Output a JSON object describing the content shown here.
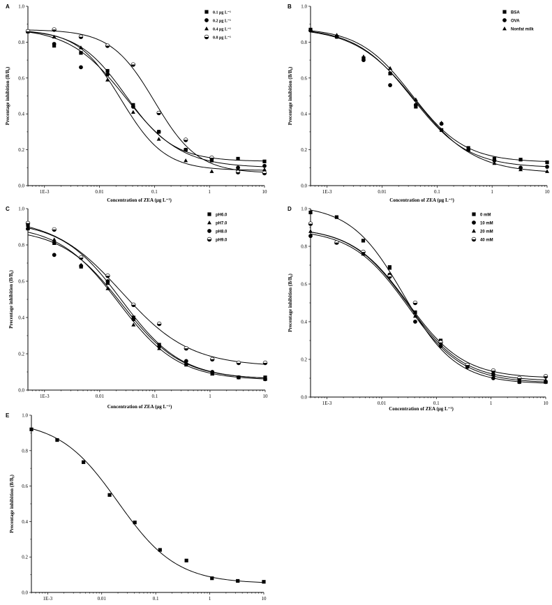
{
  "chart_data": [
    {
      "panel": "A",
      "type": "scatter",
      "xscale": "log",
      "xlim": [
        0.0005,
        10
      ],
      "ylim": [
        0.0,
        1.0
      ],
      "xticks": [
        "1E-3",
        "0.01",
        "0.1",
        "1",
        "10"
      ],
      "yticks": [
        "0.0",
        "0.2",
        "0.4",
        "0.6",
        "0.8",
        "1.0"
      ],
      "xlabel": "Concentration of ZEA (μg L⁻¹)",
      "ylabel": "Precentage inhibition (B/B₀)",
      "legend_position": "top-right",
      "x": [
        0.0005,
        0.0015,
        0.0046,
        0.014,
        0.041,
        0.12,
        0.37,
        1.1,
        3.3,
        10
      ],
      "series": [
        {
          "name": "0.1 μg L⁻¹",
          "marker": "square",
          "values": [
            0.86,
            0.78,
            0.74,
            0.64,
            0.45,
            0.3,
            0.2,
            0.14,
            0.15,
            0.135
          ],
          "fit": {
            "top": 0.87,
            "bottom": 0.135,
            "ic50": 0.03,
            "hill": 1.0
          }
        },
        {
          "name": "0.2 μg L⁻¹",
          "marker": "circle",
          "values": [
            0.86,
            0.79,
            0.66,
            0.62,
            0.44,
            0.3,
            0.2,
            0.15,
            0.1,
            0.11
          ],
          "fit": {
            "top": 0.88,
            "bottom": 0.1,
            "ic50": 0.03,
            "hill": 0.85
          }
        },
        {
          "name": "0.4 μg L⁻¹",
          "marker": "triangle",
          "values": [
            0.86,
            0.83,
            0.77,
            0.59,
            0.41,
            0.26,
            0.14,
            0.08,
            0.09,
            0.09
          ],
          "fit": {
            "top": 0.87,
            "bottom": 0.085,
            "ic50": 0.025,
            "hill": 1.1
          }
        },
        {
          "name": "0.8 μg L⁻¹",
          "marker": "half",
          "values": [
            0.86,
            0.87,
            0.83,
            0.78,
            0.675,
            0.405,
            0.255,
            0.155,
            0.075,
            0.07
          ],
          "fit": {
            "top": 0.87,
            "bottom": 0.07,
            "ic50": 0.1,
            "hill": 1.1
          }
        }
      ]
    },
    {
      "panel": "B",
      "type": "scatter",
      "xscale": "log",
      "xlim": [
        0.0005,
        10
      ],
      "ylim": [
        0.0,
        1.0
      ],
      "xticks": [
        "1E-3",
        "0.01",
        "0.1",
        "1",
        "10"
      ],
      "yticks": [
        "0.0",
        "0.2",
        "0.4",
        "0.6",
        "0.8",
        "1.0"
      ],
      "xlabel": "Concentration of ZEA (μg L⁻¹)",
      "ylabel": "Precentage inhibition (B/B₀)",
      "legend_position": "top-right",
      "x": [
        0.0005,
        0.0015,
        0.0046,
        0.014,
        0.041,
        0.12,
        0.37,
        1.1,
        3.3,
        10
      ],
      "series": [
        {
          "name": "BSA",
          "marker": "square",
          "values": [
            0.87,
            0.83,
            0.71,
            0.625,
            0.44,
            0.31,
            0.21,
            0.15,
            0.145,
            0.13
          ],
          "fit": {
            "top": 0.88,
            "bottom": 0.13,
            "ic50": 0.035,
            "hill": 0.9
          }
        },
        {
          "name": "OVA",
          "marker": "circle",
          "values": [
            0.865,
            0.83,
            0.7,
            0.56,
            0.45,
            0.345,
            0.2,
            0.14,
            0.1,
            0.105
          ],
          "fit": {
            "top": 0.88,
            "bottom": 0.1,
            "ic50": 0.035,
            "hill": 0.85
          }
        },
        {
          "name": "Nonfat milk",
          "marker": "triangle",
          "values": [
            0.87,
            0.84,
            0.72,
            0.655,
            0.48,
            0.35,
            0.2,
            0.125,
            0.09,
            0.08
          ],
          "fit": {
            "top": 0.88,
            "bottom": 0.07,
            "ic50": 0.04,
            "hill": 0.8
          }
        }
      ]
    },
    {
      "panel": "C",
      "type": "scatter",
      "xscale": "log",
      "xlim": [
        0.0005,
        10
      ],
      "ylim": [
        0.0,
        1.0
      ],
      "xticks": [
        "1E-3",
        "0.01",
        "0.1",
        "1",
        "10"
      ],
      "yticks": [
        "0.0",
        "0.2",
        "0.4",
        "0.6",
        "0.8",
        "1.0"
      ],
      "xlabel": "Concentration of ZEA (μg L⁻¹)",
      "ylabel": "Precentage inhibition (B/B₀)",
      "legend_position": "top-right",
      "x": [
        0.0005,
        0.0015,
        0.0046,
        0.014,
        0.041,
        0.12,
        0.37,
        1.1,
        3.3,
        10
      ],
      "series": [
        {
          "name": "pH6.0",
          "marker": "square",
          "values": [
            0.91,
            0.81,
            0.68,
            0.59,
            0.4,
            0.25,
            0.14,
            0.09,
            0.07,
            0.07
          ],
          "fit": {
            "top": 0.93,
            "bottom": 0.06,
            "ic50": 0.025,
            "hill": 0.8
          }
        },
        {
          "name": "pH7.0",
          "marker": "triangle",
          "values": [
            0.89,
            0.83,
            0.69,
            0.56,
            0.36,
            0.23,
            0.15,
            0.09,
            0.07,
            0.06
          ],
          "fit": {
            "top": 0.91,
            "bottom": 0.055,
            "ic50": 0.022,
            "hill": 0.8
          }
        },
        {
          "name": "pH8.0",
          "marker": "circle",
          "values": [
            0.89,
            0.745,
            0.685,
            0.6,
            0.39,
            0.24,
            0.16,
            0.1,
            0.07,
            0.06
          ],
          "fit": {
            "top": 0.89,
            "bottom": 0.06,
            "ic50": 0.025,
            "hill": 0.8
          }
        },
        {
          "name": "pH9.0",
          "marker": "half",
          "values": [
            0.92,
            0.885,
            0.73,
            0.63,
            0.47,
            0.365,
            0.23,
            0.17,
            0.15,
            0.15
          ],
          "fit": {
            "top": 0.95,
            "bottom": 0.13,
            "ic50": 0.025,
            "hill": 0.7
          }
        }
      ]
    },
    {
      "panel": "D",
      "type": "scatter",
      "xscale": "log",
      "xlim": [
        0.0005,
        10
      ],
      "ylim": [
        0.0,
        1.0
      ],
      "xticks": [
        "1E-3",
        "0.01",
        "0.1",
        "1",
        "10"
      ],
      "yticks": [
        "0.0",
        "0.2",
        "0.4",
        "0.6",
        "0.8",
        "1.0"
      ],
      "xlabel": "Concentration of ZEA (μg L⁻¹)",
      "ylabel": "Precentage inhibition (B/B₀)",
      "legend_position": "top-right",
      "x": [
        0.0005,
        0.0015,
        0.0046,
        0.014,
        0.041,
        0.12,
        0.37,
        1.1,
        3.3,
        10
      ],
      "series": [
        {
          "name": "0 mM",
          "marker": "square",
          "values": [
            0.98,
            0.955,
            0.83,
            0.69,
            0.45,
            0.3,
            0.17,
            0.12,
            0.08,
            0.08
          ],
          "fit": {
            "top": 1.02,
            "bottom": 0.07,
            "ic50": 0.025,
            "hill": 0.9
          }
        },
        {
          "name": "10 mM",
          "marker": "circle",
          "values": [
            0.855,
            0.82,
            0.77,
            0.65,
            0.4,
            0.27,
            0.16,
            0.1,
            0.08,
            0.08
          ],
          "fit": {
            "top": 0.89,
            "bottom": 0.075,
            "ic50": 0.03,
            "hill": 0.85
          }
        },
        {
          "name": "20 mM",
          "marker": "triangle",
          "values": [
            0.88,
            0.82,
            0.76,
            0.685,
            0.43,
            0.28,
            0.17,
            0.12,
            0.09,
            0.09
          ],
          "fit": {
            "top": 0.9,
            "bottom": 0.085,
            "ic50": 0.03,
            "hill": 0.85
          }
        },
        {
          "name": "40 mM",
          "marker": "half",
          "values": [
            0.92,
            0.82,
            0.77,
            0.64,
            0.5,
            0.29,
            0.17,
            0.14,
            0.1,
            0.11
          ],
          "fit": {
            "top": 0.9,
            "bottom": 0.1,
            "ic50": 0.03,
            "hill": 0.85
          }
        }
      ]
    },
    {
      "panel": "E",
      "type": "scatter",
      "xscale": "log",
      "xlim": [
        0.0005,
        10
      ],
      "ylim": [
        0.0,
        1.0
      ],
      "xticks": [
        "1E-3",
        "0.01",
        "0.1",
        "1",
        "10"
      ],
      "yticks": [
        "0.0",
        "0.2",
        "0.4",
        "0.6",
        "0.8",
        "1.0"
      ],
      "xlabel": "",
      "ylabel": "Precentage inhibition (B/B₀)",
      "x": [
        0.0005,
        0.0015,
        0.0046,
        0.014,
        0.041,
        0.12,
        0.37,
        1.1,
        3.3,
        10
      ],
      "series": [
        {
          "marker": "square",
          "values": [
            0.92,
            0.86,
            0.735,
            0.55,
            0.395,
            0.24,
            0.18,
            0.08,
            0.065,
            0.06
          ],
          "fit": {
            "top": 0.97,
            "bottom": 0.05,
            "ic50": 0.02,
            "hill": 0.8
          }
        }
      ]
    }
  ]
}
